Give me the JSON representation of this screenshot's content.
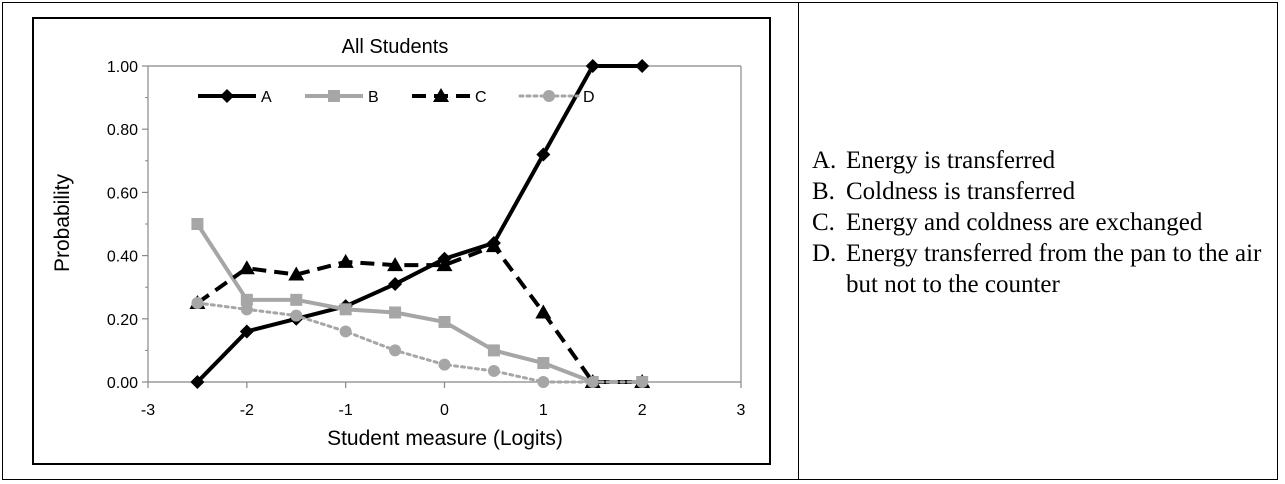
{
  "chart_data": {
    "type": "line",
    "title": "All Students",
    "xlabel": "Student measure (Logits)",
    "ylabel": "Probability",
    "xlim": [
      -3,
      3
    ],
    "ylim": [
      0,
      1
    ],
    "xticks": [
      -3,
      -2,
      -1,
      0,
      1,
      2,
      3
    ],
    "yticks": [
      0,
      0.2,
      0.4,
      0.6,
      0.8,
      1.0
    ],
    "x_tick_labels": [
      "-3",
      "-2",
      "-1",
      "0",
      "1",
      "2",
      "3"
    ],
    "y_tick_labels": [
      "0.00",
      "0.20",
      "0.40",
      "0.60",
      "0.80",
      "1.00"
    ],
    "x": [
      -2.5,
      -2,
      -1.5,
      -1,
      -0.5,
      0,
      0.5,
      1,
      1.5,
      2
    ],
    "grid": false,
    "legend_position": "top",
    "series": [
      {
        "name": "A",
        "color": "#000000",
        "line_style": "solid",
        "marker": "diamond",
        "values": [
          0.0,
          0.16,
          0.2,
          0.24,
          0.31,
          0.39,
          0.44,
          0.72,
          1.0,
          1.0
        ]
      },
      {
        "name": "B",
        "color": "#a6a6a6",
        "line_style": "solid",
        "marker": "square",
        "values": [
          0.5,
          0.26,
          0.26,
          0.23,
          0.22,
          0.19,
          0.1,
          0.06,
          0.0,
          0.0
        ]
      },
      {
        "name": "C",
        "color": "#000000",
        "line_style": "dashed",
        "marker": "triangle",
        "values": [
          0.25,
          0.36,
          0.34,
          0.38,
          0.37,
          0.37,
          0.43,
          0.22,
          0.0,
          0.0
        ]
      },
      {
        "name": "D",
        "color": "#a6a6a6",
        "line_style": "dotted",
        "marker": "circle",
        "values": [
          0.25,
          0.23,
          0.21,
          0.16,
          0.1,
          0.055,
          0.035,
          0.0,
          0.0,
          0.0
        ]
      }
    ]
  },
  "options": [
    {
      "letter": "A.",
      "text": "Energy is transferred"
    },
    {
      "letter": "B.",
      "text": "Coldness is transferred"
    },
    {
      "letter": "C.",
      "text": "Energy and coldness are exchanged"
    },
    {
      "letter": "D.",
      "text": "Energy transferred from the pan to the air but not to the counter"
    }
  ]
}
